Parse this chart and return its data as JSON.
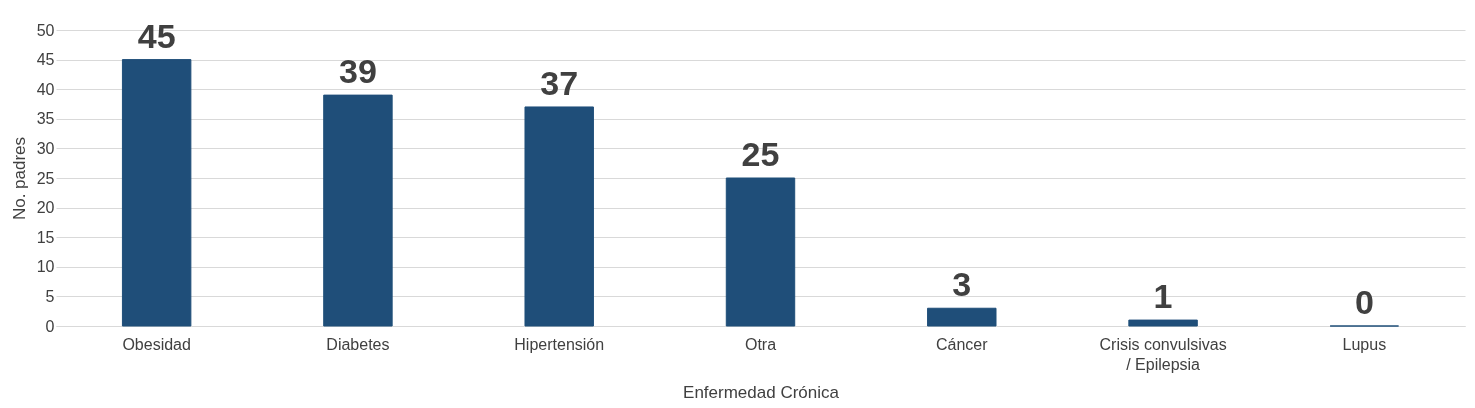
{
  "chart_data": {
    "type": "bar",
    "xlabel": "Enfermedad Crónica",
    "ylabel": "No. padres",
    "categories": [
      "Obesidad",
      "Diabetes",
      "Hipertensión",
      "Otra",
      "Cáncer",
      "Crisis convulsivas\n/ Epilepsia",
      "Lupus"
    ],
    "values": [
      45,
      39,
      37,
      25,
      3,
      1,
      0
    ],
    "color": "#1f4e79",
    "ylim": [
      0,
      50
    ],
    "yticks": [
      0,
      5,
      10,
      15,
      20,
      25,
      30,
      35,
      40,
      45,
      50
    ],
    "grid": "y",
    "data_labels": true
  }
}
